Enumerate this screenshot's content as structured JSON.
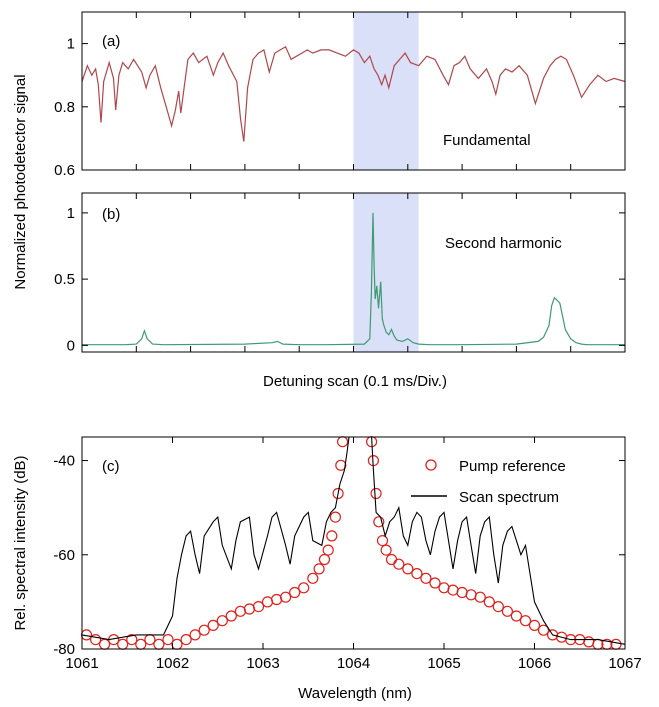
{
  "chart_data": [
    {
      "id": "a",
      "type": "line",
      "panel_label": "(a)",
      "ylabel": "Normalized photodetector signal",
      "xlabel": "",
      "xlim": [
        0,
        10
      ],
      "ylim": [
        0.6,
        1.1
      ],
      "yticks": [
        "0.6",
        "0.8",
        "1"
      ],
      "ytick_values": [
        0.6,
        0.8,
        1.0
      ],
      "grid": false,
      "highlight_band_x": [
        5.0,
        6.2
      ],
      "highlight_color": "#d9e0f7",
      "series": [
        {
          "name": "Fundamental",
          "color": "#b0474c",
          "x": [
            0.0,
            0.1,
            0.18,
            0.25,
            0.3,
            0.35,
            0.4,
            0.5,
            0.58,
            0.62,
            0.68,
            0.75,
            0.85,
            0.95,
            1.1,
            1.18,
            1.25,
            1.35,
            1.45,
            1.55,
            1.65,
            1.72,
            1.78,
            1.82,
            1.88,
            1.95,
            2.05,
            2.15,
            2.3,
            2.42,
            2.5,
            2.6,
            2.7,
            2.85,
            2.92,
            2.98,
            3.05,
            3.15,
            3.25,
            3.35,
            3.45,
            3.55,
            3.65,
            3.75,
            3.85,
            3.95,
            4.05,
            4.15,
            4.25,
            4.4,
            4.55,
            4.7,
            4.85,
            5.0,
            5.1,
            5.2,
            5.3,
            5.38,
            5.45,
            5.52,
            5.58,
            5.65,
            5.75,
            5.85,
            5.95,
            6.05,
            6.2,
            6.35,
            6.5,
            6.65,
            6.75,
            6.85,
            6.95,
            7.05,
            7.15,
            7.3,
            7.45,
            7.55,
            7.62,
            7.7,
            7.8,
            7.92,
            8.05,
            8.2,
            8.35,
            8.5,
            8.62,
            8.72,
            8.82,
            8.92,
            9.05,
            9.2,
            9.35,
            9.5,
            9.65,
            9.8,
            10.0
          ],
          "y": [
            0.88,
            0.93,
            0.9,
            0.92,
            0.87,
            0.75,
            0.88,
            0.94,
            0.89,
            0.79,
            0.9,
            0.94,
            0.92,
            0.95,
            0.91,
            0.86,
            0.9,
            0.93,
            0.86,
            0.8,
            0.74,
            0.79,
            0.85,
            0.78,
            0.86,
            0.95,
            0.97,
            0.94,
            0.96,
            0.9,
            0.94,
            0.97,
            0.93,
            0.88,
            0.76,
            0.69,
            0.86,
            0.95,
            0.97,
            0.98,
            0.91,
            0.97,
            0.98,
            0.99,
            0.95,
            0.96,
            0.97,
            0.98,
            0.97,
            0.98,
            0.98,
            0.97,
            0.96,
            0.98,
            0.97,
            0.94,
            0.96,
            0.92,
            0.9,
            0.87,
            0.9,
            0.86,
            0.93,
            0.95,
            0.97,
            0.94,
            0.93,
            0.96,
            0.95,
            0.9,
            0.87,
            0.93,
            0.94,
            0.96,
            0.92,
            0.89,
            0.92,
            0.88,
            0.84,
            0.9,
            0.92,
            0.91,
            0.93,
            0.9,
            0.81,
            0.89,
            0.93,
            0.95,
            0.96,
            0.95,
            0.9,
            0.83,
            0.87,
            0.9,
            0.88,
            0.89,
            0.88
          ]
        }
      ]
    },
    {
      "id": "b",
      "type": "line",
      "panel_label": "(b)",
      "ylabel": "Normalized photodetector signal",
      "xlabel": "Detuning scan (0.1 ms/Div.)",
      "xlim": [
        0,
        10
      ],
      "ylim": [
        -0.05,
        1.15
      ],
      "yticks": [
        "0",
        "0.5",
        "1"
      ],
      "ytick_values": [
        0,
        0.5,
        1.0
      ],
      "grid": false,
      "highlight_band_x": [
        5.0,
        6.2
      ],
      "highlight_color": "#d9e0f7",
      "series": [
        {
          "name": "Second harmonic",
          "color": "#3d9a73",
          "x": [
            0.0,
            0.8,
            1.0,
            1.1,
            1.15,
            1.2,
            1.3,
            1.5,
            3.0,
            3.5,
            3.6,
            3.7,
            4.0,
            4.5,
            5.2,
            5.3,
            5.33,
            5.36,
            5.38,
            5.4,
            5.43,
            5.46,
            5.5,
            5.53,
            5.56,
            5.6,
            5.65,
            5.7,
            5.75,
            5.8,
            5.9,
            6.0,
            6.1,
            6.2,
            6.4,
            7.0,
            8.0,
            8.4,
            8.5,
            8.6,
            8.65,
            8.7,
            8.8,
            8.85,
            8.9,
            9.0,
            9.1,
            9.2,
            9.3,
            9.5,
            10.0
          ],
          "y": [
            0.005,
            0.005,
            0.01,
            0.05,
            0.11,
            0.05,
            0.01,
            0.005,
            0.01,
            0.02,
            0.03,
            0.01,
            0.005,
            0.005,
            0.01,
            0.05,
            0.4,
            1.0,
            0.6,
            0.35,
            0.45,
            0.28,
            0.48,
            0.2,
            0.15,
            0.1,
            0.08,
            0.12,
            0.07,
            0.04,
            0.03,
            0.05,
            0.02,
            0.01,
            0.005,
            0.005,
            0.01,
            0.03,
            0.06,
            0.15,
            0.3,
            0.36,
            0.32,
            0.22,
            0.12,
            0.05,
            0.02,
            0.01,
            0.005,
            0.005,
            0.005
          ]
        }
      ]
    },
    {
      "id": "c",
      "type": "line",
      "panel_label": "(c)",
      "ylabel": "Rel. spectral intensity (dB)",
      "xlabel": "Wavelength (nm)",
      "xlim": [
        1061,
        1067
      ],
      "ylim": [
        -80,
        -35
      ],
      "xticks": [
        "1061",
        "1062",
        "1063",
        "1064",
        "1065",
        "1066",
        "1067"
      ],
      "xtick_values": [
        1061,
        1062,
        1063,
        1064,
        1065,
        1066,
        1067
      ],
      "yticks": [
        "-80",
        "-60",
        "-40"
      ],
      "ytick_values": [
        -80,
        -60,
        -40
      ],
      "grid": false,
      "legend_position": "top-right",
      "series": [
        {
          "name": "Scan spectrum",
          "color": "#000000",
          "style": "line",
          "x": [
            1061.0,
            1061.3,
            1061.6,
            1061.9,
            1062.0,
            1062.05,
            1062.1,
            1062.15,
            1062.2,
            1062.25,
            1062.3,
            1062.35,
            1062.45,
            1062.5,
            1062.55,
            1062.65,
            1062.7,
            1062.75,
            1062.85,
            1062.9,
            1062.95,
            1063.05,
            1063.1,
            1063.15,
            1063.25,
            1063.3,
            1063.35,
            1063.45,
            1063.5,
            1063.55,
            1063.65,
            1063.7,
            1063.75,
            1063.8,
            1063.85,
            1063.9,
            1063.93,
            1063.95,
            1064.2,
            1064.22,
            1064.25,
            1064.3,
            1064.35,
            1064.4,
            1064.45,
            1064.5,
            1064.55,
            1064.6,
            1064.65,
            1064.7,
            1064.75,
            1064.8,
            1064.85,
            1064.9,
            1064.95,
            1065.0,
            1065.05,
            1065.1,
            1065.15,
            1065.2,
            1065.25,
            1065.3,
            1065.35,
            1065.4,
            1065.45,
            1065.5,
            1065.55,
            1065.6,
            1065.65,
            1065.7,
            1065.75,
            1065.8,
            1065.85,
            1065.9,
            1066.0,
            1066.1,
            1066.2,
            1066.4,
            1066.7,
            1067.0
          ],
          "y": [
            -77,
            -78,
            -77,
            -77,
            -73,
            -65,
            -60,
            -56,
            -55,
            -60,
            -64,
            -56,
            -53,
            -52,
            -58,
            -63,
            -57,
            -53,
            -52,
            -60,
            -63,
            -56,
            -52,
            -51,
            -58,
            -62,
            -56,
            -52,
            -51,
            -57,
            -58,
            -53,
            -51,
            -50,
            -45,
            -42,
            -38,
            -35,
            -35,
            -42,
            -51,
            -52,
            -56,
            -53,
            -52,
            -50,
            -56,
            -58,
            -53,
            -51,
            -52,
            -57,
            -60,
            -55,
            -52,
            -51,
            -57,
            -63,
            -57,
            -53,
            -52,
            -58,
            -64,
            -56,
            -53,
            -52,
            -60,
            -66,
            -58,
            -55,
            -54,
            -57,
            -60,
            -58,
            -70,
            -74,
            -77,
            -78,
            -78,
            -79
          ]
        },
        {
          "name": "Pump reference",
          "color": "#e0201c",
          "style": "markers",
          "x": [
            1061.05,
            1061.15,
            1061.25,
            1061.35,
            1061.45,
            1061.55,
            1061.65,
            1061.75,
            1061.85,
            1061.95,
            1062.05,
            1062.15,
            1062.25,
            1062.35,
            1062.45,
            1062.55,
            1062.65,
            1062.75,
            1062.85,
            1062.95,
            1063.05,
            1063.15,
            1063.25,
            1063.35,
            1063.45,
            1063.55,
            1063.62,
            1063.68,
            1063.72,
            1063.76,
            1063.8,
            1063.83,
            1063.86,
            1063.88,
            1064.2,
            1064.22,
            1064.25,
            1064.28,
            1064.32,
            1064.36,
            1064.42,
            1064.5,
            1064.6,
            1064.7,
            1064.8,
            1064.9,
            1065.0,
            1065.1,
            1065.2,
            1065.3,
            1065.4,
            1065.5,
            1065.6,
            1065.7,
            1065.8,
            1065.9,
            1066.0,
            1066.1,
            1066.2,
            1066.3,
            1066.4,
            1066.5,
            1066.6,
            1066.7,
            1066.8,
            1066.9
          ],
          "y": [
            -77,
            -78,
            -79,
            -78,
            -79,
            -78,
            -79,
            -78,
            -79,
            -78,
            -79,
            -78,
            -77,
            -76,
            -75,
            -74,
            -73,
            -72,
            -71.5,
            -71,
            -70,
            -69.5,
            -69,
            -68,
            -67,
            -65,
            -63,
            -61,
            -59,
            -56,
            -52,
            -47,
            -41,
            -36,
            -36,
            -40,
            -47,
            -53,
            -57,
            -59,
            -61,
            -62,
            -63,
            -64,
            -65,
            -66,
            -67,
            -67.5,
            -68,
            -68.5,
            -69,
            -70,
            -71,
            -72,
            -73,
            -74,
            -75,
            -76,
            -77,
            -77.5,
            -78,
            -78,
            -78.5,
            -79,
            -79,
            -79
          ]
        }
      ]
    }
  ]
}
